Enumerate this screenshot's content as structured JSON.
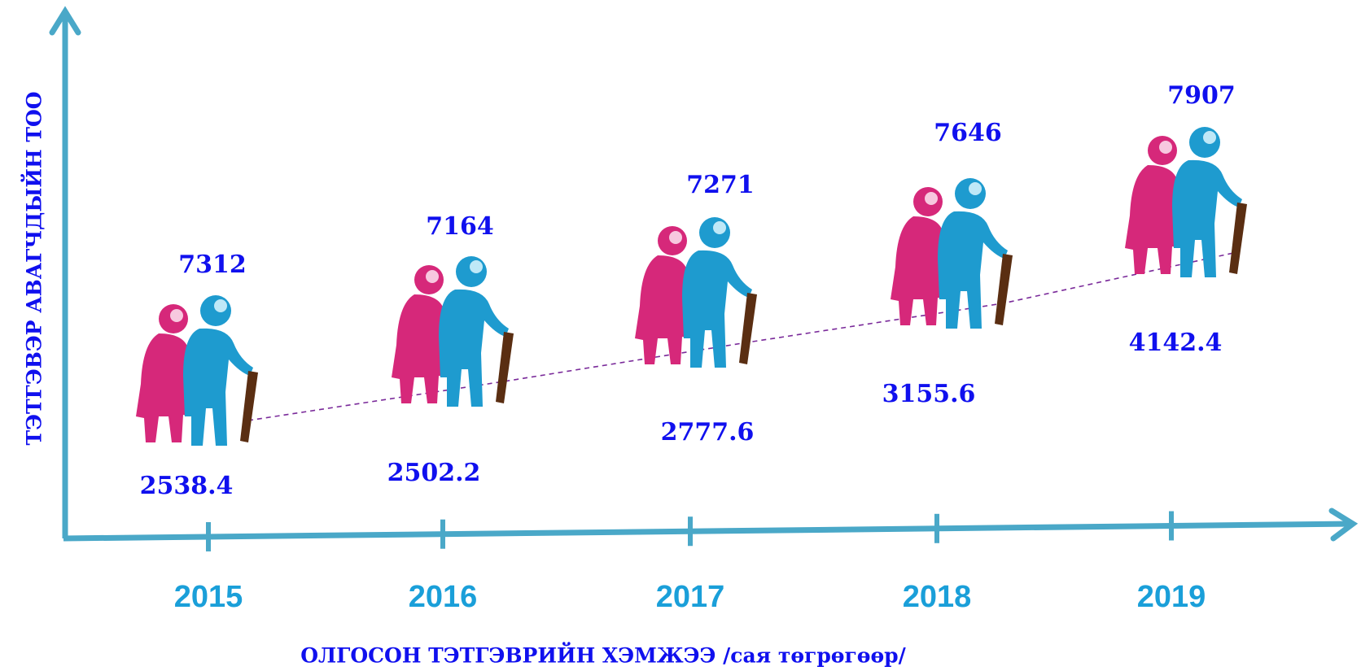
{
  "chart_data": {
    "type": "pictograph",
    "y_label": "ТЭТГЭВЭР АВАГЧДЫЙН ТОО",
    "x_label": "ОЛГОСОН ТЭТГЭВРИЙН ХЭМЖЭЭ /сая төгрөгөөр/",
    "categories": [
      "2015",
      "2016",
      "2017",
      "2018",
      "2019"
    ],
    "series": [
      {
        "color": "#1010ee",
        "values": [
          7312,
          7164,
          7271,
          7646,
          7907
        ]
      },
      {
        "color": "#1010ee",
        "values": [
          2538.4,
          2502.2,
          2777.6,
          3155.6,
          4142.4
        ]
      }
    ],
    "axis_color": "#4aa8c8",
    "year_color": "#1a9fd9",
    "label_color": "#1010ee"
  }
}
